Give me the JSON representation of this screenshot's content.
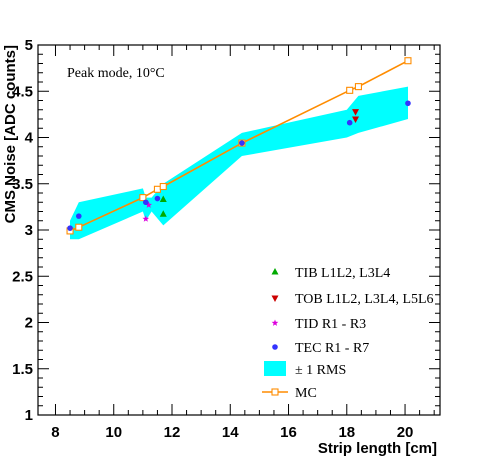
{
  "chart_data": {
    "type": "scatter",
    "xlabel": "Strip length [cm]",
    "ylabel": "CMS Noise [ADC counts]",
    "xlim": [
      7.4,
      21.2
    ],
    "ylim": [
      1,
      5
    ],
    "x_ticks": [
      "8",
      "10",
      "12",
      "14",
      "16",
      "18",
      "20"
    ],
    "y_ticks": [
      "1",
      "1.5",
      "2",
      "2.5",
      "3",
      "3.5",
      "4",
      "4.5",
      "5"
    ],
    "annotation": "Peak mode, 10°C",
    "grid": false,
    "legend_position": "bottom-right",
    "rms_band": {
      "name": "± 1 RMS",
      "color": "#00ffff",
      "upper": [
        [
          8.5,
          3.1
        ],
        [
          8.8,
          3.3
        ],
        [
          11.0,
          3.45
        ],
        [
          11.1,
          3.35
        ],
        [
          11.3,
          3.35
        ],
        [
          11.7,
          3.5
        ],
        [
          14.4,
          4.05
        ],
        [
          18.0,
          4.3
        ],
        [
          18.4,
          4.45
        ],
        [
          20.1,
          4.55
        ]
      ],
      "lower": [
        [
          20.1,
          4.2
        ],
        [
          18.4,
          4.05
        ],
        [
          18.0,
          4.0
        ],
        [
          14.4,
          3.8
        ],
        [
          11.7,
          3.05
        ],
        [
          11.3,
          3.2
        ],
        [
          11.1,
          3.1
        ],
        [
          11.0,
          3.2
        ],
        [
          8.8,
          2.9
        ],
        [
          8.5,
          2.9
        ]
      ]
    },
    "series": [
      {
        "name": "TIB L1L2, L3L4",
        "marker": "triangle-up",
        "color": "#00aa00",
        "points": [
          [
            11.7,
            3.33
          ],
          [
            11.7,
            3.17
          ]
        ]
      },
      {
        "name": "TOB L1L2, L3L4, L5L6",
        "marker": "triangle-down",
        "color": "#cc0000",
        "points": [
          [
            18.3,
            4.28
          ],
          [
            18.3,
            4.2
          ]
        ]
      },
      {
        "name": "TID R1 - R3",
        "marker": "star",
        "color": "#dd00dd",
        "points": [
          [
            11.1,
            3.12
          ],
          [
            11.2,
            3.27
          ]
        ]
      },
      {
        "name": "TEC R1 - R7",
        "marker": "circle",
        "color": "#3333ff",
        "points": [
          [
            8.5,
            3.02
          ],
          [
            8.8,
            3.15
          ],
          [
            11.1,
            3.3
          ],
          [
            11.5,
            3.34
          ],
          [
            14.4,
            3.94
          ],
          [
            18.1,
            4.16
          ],
          [
            20.1,
            4.37
          ]
        ]
      },
      {
        "name": "MC",
        "marker": "open-square-line",
        "color": "#ff8c00",
        "points": [
          [
            8.5,
            2.99
          ],
          [
            8.8,
            3.03
          ],
          [
            11.0,
            3.35
          ],
          [
            11.5,
            3.44
          ],
          [
            11.7,
            3.47
          ],
          [
            14.4,
            3.94
          ],
          [
            18.1,
            4.51
          ],
          [
            18.4,
            4.55
          ],
          [
            20.1,
            4.83
          ]
        ]
      }
    ]
  }
}
